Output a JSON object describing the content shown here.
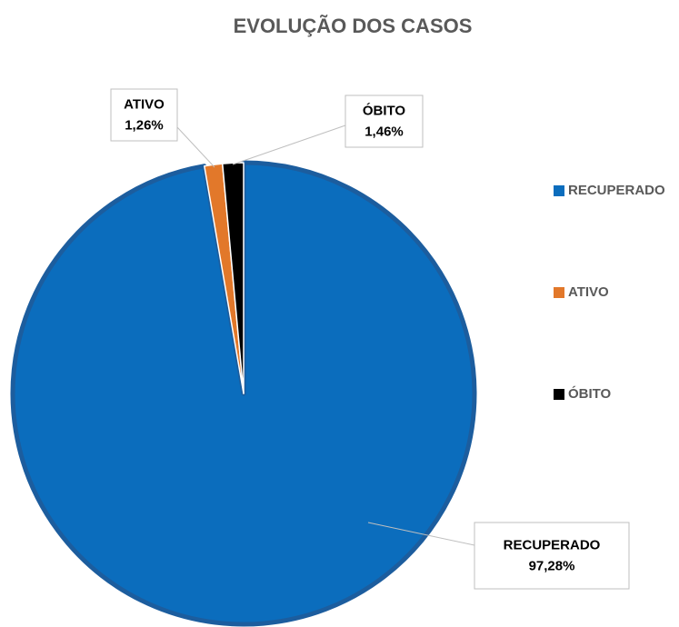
{
  "chart_data": {
    "type": "pie",
    "title": "EVOLUÇÃO DOS CASOS",
    "categories": [
      "RECUPERADO",
      "ATIVO",
      "ÓBITO"
    ],
    "values": [
      97.28,
      1.26,
      1.46
    ],
    "value_labels": [
      "97,28%",
      "1,26%",
      "1,46%"
    ],
    "colors": [
      "#0b6dbd",
      "#e2782a",
      "#000000"
    ],
    "legend": "right"
  }
}
